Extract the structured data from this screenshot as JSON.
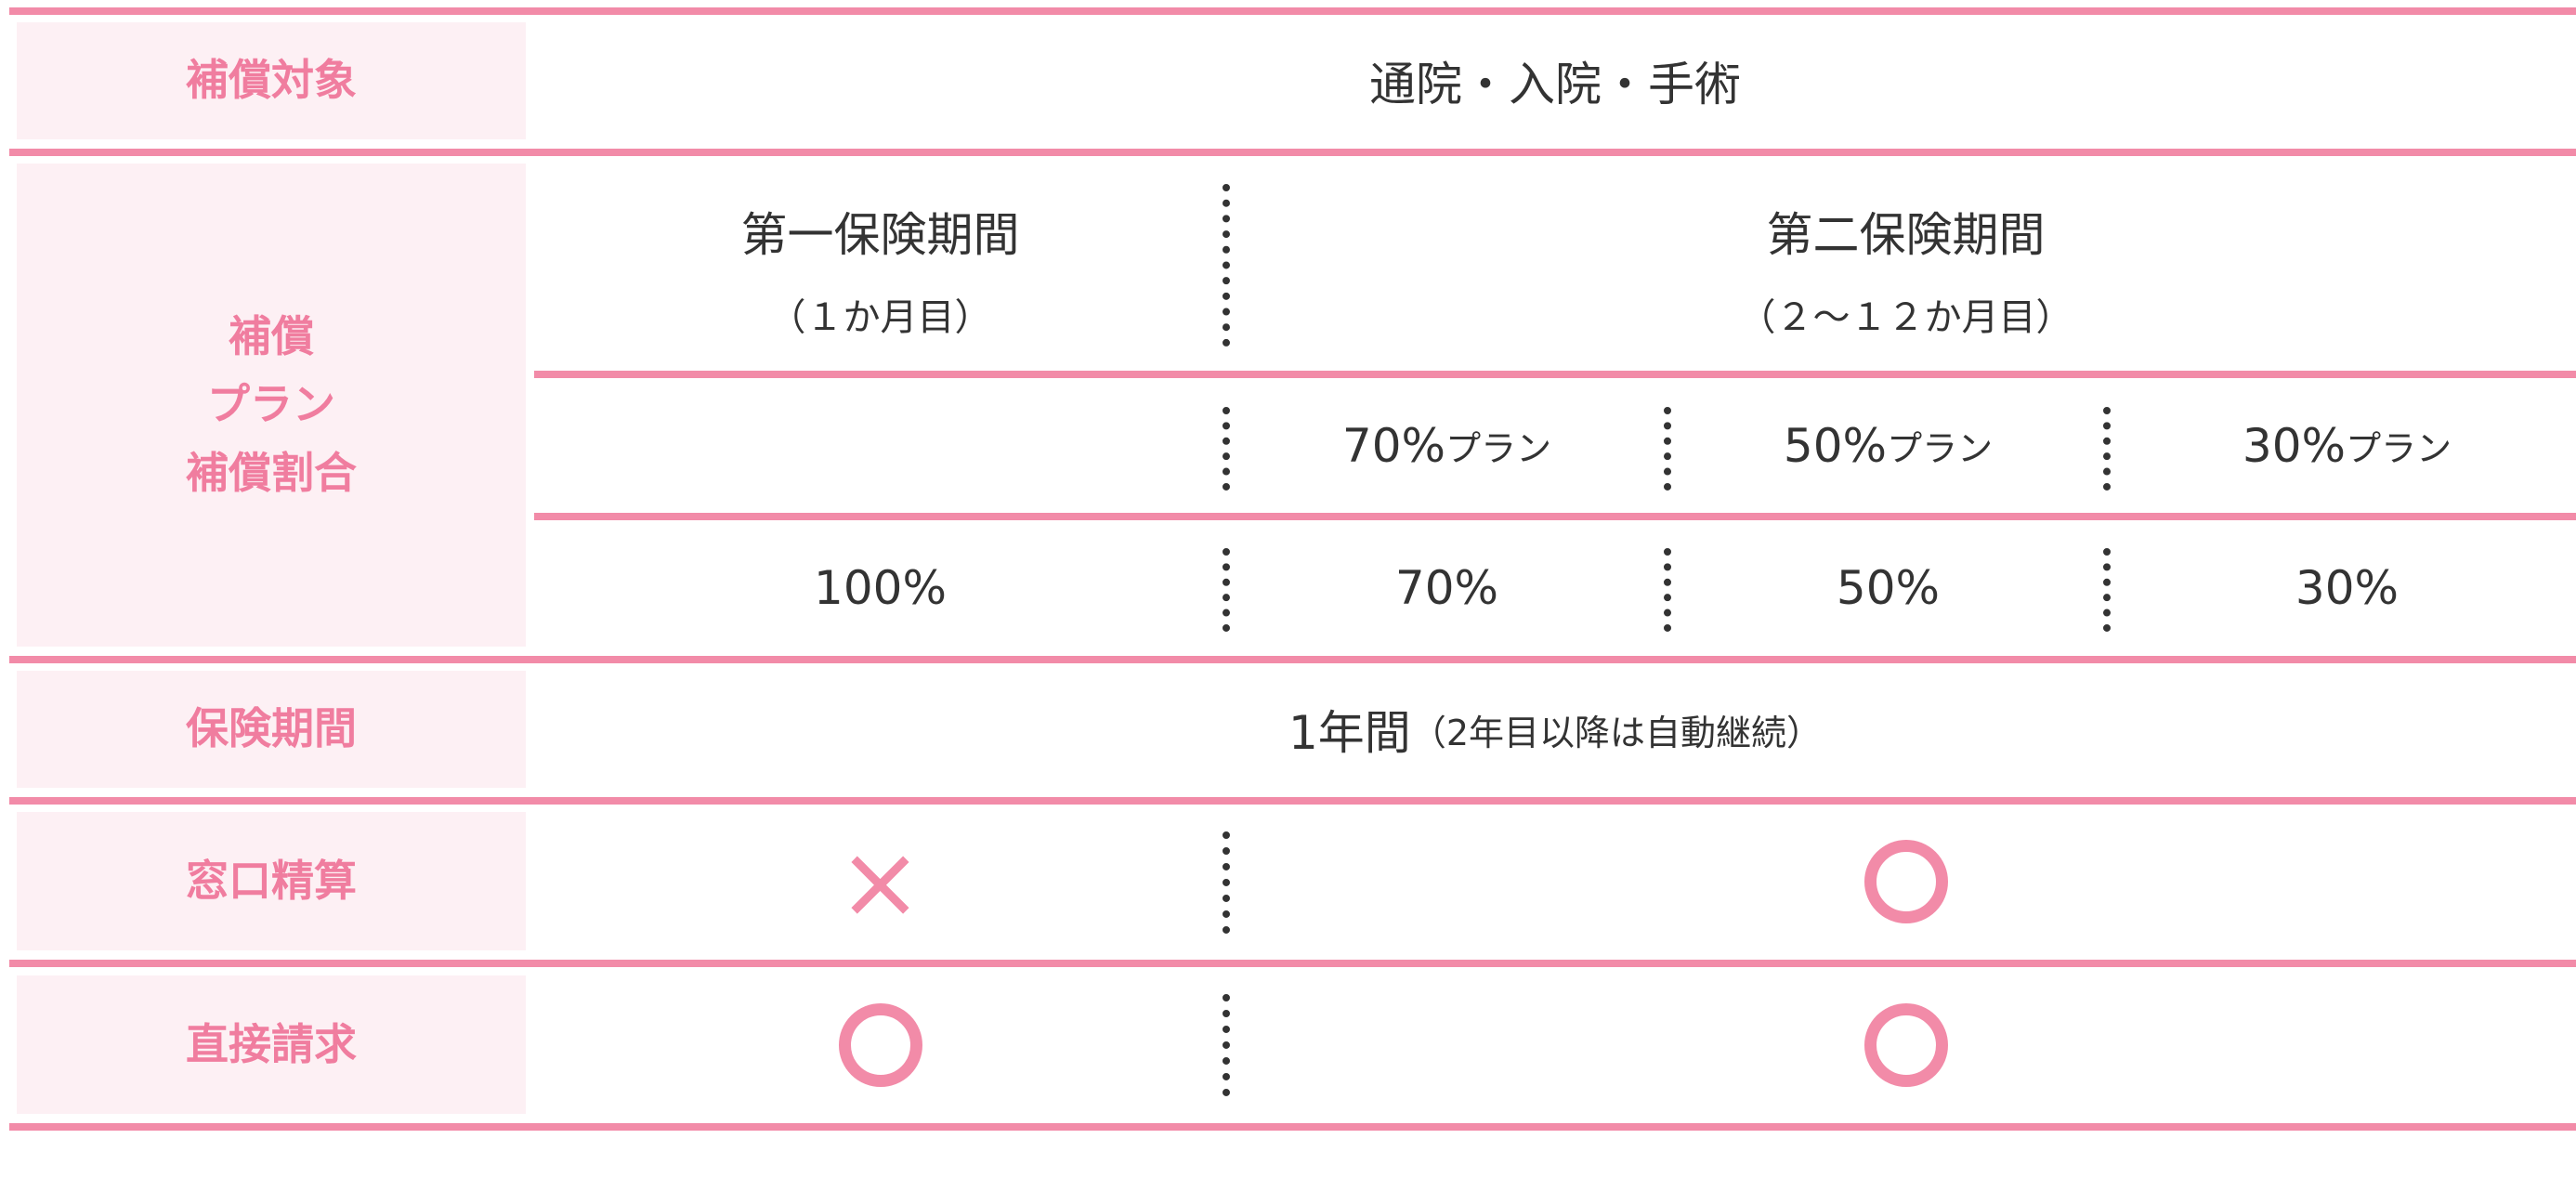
{
  "colors": {
    "accent": "#f28ba8",
    "label_bg": "#fdf0f4",
    "text": "#333333"
  },
  "rows": {
    "coverage": {
      "label": "補償対象",
      "value": "通院・入院・手術"
    },
    "plan": {
      "label_lines": [
        "補償",
        "プラン",
        "補償割合"
      ],
      "period1": {
        "title": "第一保険期間",
        "sub": "（１か月目）"
      },
      "period2": {
        "title": "第二保険期間",
        "sub": "（２～１２か月目）"
      },
      "plans": [
        {
          "num": "70%",
          "suffix": "プラン"
        },
        {
          "num": "50%",
          "suffix": "プラン"
        },
        {
          "num": "30%",
          "suffix": "プラン"
        }
      ],
      "rates": [
        "100%",
        "70%",
        "50%",
        "30%"
      ]
    },
    "period": {
      "label": "保険期間",
      "value": "1年間",
      "note": "（2年目以降は自動継続）"
    },
    "counter": {
      "label": "窓口精算",
      "period1": "cross-icon",
      "period2": "circle-icon"
    },
    "direct": {
      "label": "直接請求",
      "period1": "circle-icon",
      "period2": "circle-icon"
    }
  },
  "symbols": {
    "cross": "×"
  }
}
